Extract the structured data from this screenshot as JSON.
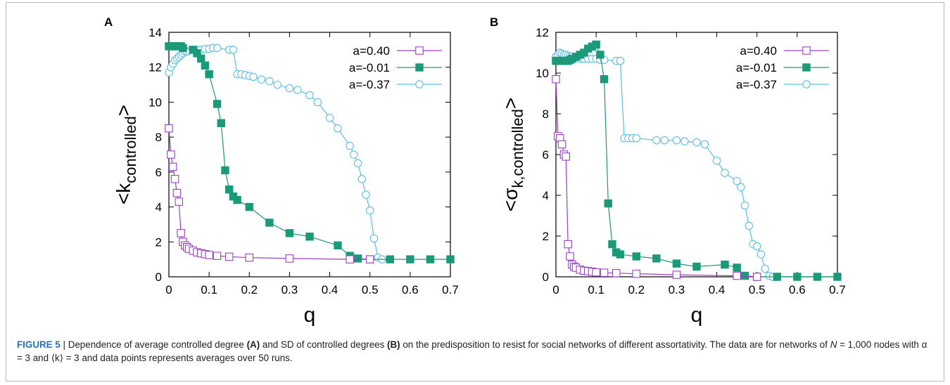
{
  "figure": {
    "caption": {
      "label": "FIGURE 5",
      "separator": " | ",
      "part1": "Dependence of average controlled degree ",
      "ref_a": "(A)",
      "part2": " and SD of controlled degrees ",
      "ref_b": "(B)",
      "part3": " on the predisposition to resist for social networks of different assortativity. The data are for networks of ",
      "n_symbol": "N",
      "part4": " = 1,000 nodes with α = 3 and ⟨k⟩ = 3 and data points represents averages over 50 runs."
    }
  },
  "colors": {
    "a040": "#9b3fc4",
    "a001": "#1a9a78",
    "a037": "#5bbde4"
  },
  "chart_data": [
    {
      "panel": "A",
      "type": "line",
      "xlabel": "q",
      "ylabel_main": "<k",
      "ylabel_sub": "controlled",
      "ylabel_end": ">",
      "xlim": [
        0,
        0.7
      ],
      "ylim": [
        0,
        14
      ],
      "xticks": [
        "0",
        "0.1",
        "0.2",
        "0.3",
        "0.4",
        "0.5",
        "0.6",
        "0.7"
      ],
      "yticks": [
        "0",
        "2",
        "4",
        "6",
        "8",
        "10",
        "12",
        "14"
      ],
      "legend_position": "top-right",
      "series": [
        {
          "name": "a=0.40",
          "marker": "open-square",
          "color_key": "a040",
          "x": [
            0.0,
            0.005,
            0.01,
            0.015,
            0.02,
            0.025,
            0.03,
            0.035,
            0.04,
            0.045,
            0.05,
            0.06,
            0.07,
            0.08,
            0.09,
            0.1,
            0.12,
            0.15,
            0.2,
            0.3,
            0.45,
            0.5
          ],
          "y": [
            8.5,
            7.0,
            6.3,
            5.6,
            4.8,
            4.3,
            2.5,
            2.0,
            1.8,
            1.7,
            1.6,
            1.5,
            1.4,
            1.35,
            1.3,
            1.25,
            1.2,
            1.15,
            1.1,
            1.05,
            1.0,
            1.0
          ]
        },
        {
          "name": "a=-0.01",
          "marker": "filled-square",
          "color_key": "a001",
          "x": [
            0.0,
            0.005,
            0.01,
            0.015,
            0.02,
            0.025,
            0.03,
            0.035,
            0.06,
            0.07,
            0.08,
            0.09,
            0.1,
            0.12,
            0.13,
            0.14,
            0.15,
            0.16,
            0.17,
            0.2,
            0.25,
            0.3,
            0.35,
            0.42,
            0.45,
            0.47,
            0.5,
            0.55,
            0.6,
            0.65,
            0.7
          ],
          "y": [
            13.2,
            13.2,
            13.2,
            13.2,
            13.2,
            13.2,
            13.2,
            13.1,
            13.0,
            12.8,
            12.5,
            12.1,
            11.6,
            9.9,
            8.8,
            6.1,
            5.0,
            4.6,
            4.4,
            4.0,
            3.1,
            2.5,
            2.3,
            1.8,
            1.2,
            1.05,
            1.0,
            1.0,
            1.0,
            1.0,
            1.0
          ]
        },
        {
          "name": "a=-0.37",
          "marker": "open-circle",
          "color_key": "a037",
          "x": [
            0.0,
            0.005,
            0.01,
            0.015,
            0.02,
            0.025,
            0.03,
            0.035,
            0.04,
            0.045,
            0.05,
            0.06,
            0.07,
            0.08,
            0.09,
            0.1,
            0.11,
            0.12,
            0.15,
            0.16,
            0.17,
            0.18,
            0.19,
            0.2,
            0.21,
            0.23,
            0.25,
            0.27,
            0.3,
            0.32,
            0.35,
            0.37,
            0.4,
            0.42,
            0.45,
            0.46,
            0.47,
            0.48,
            0.49,
            0.5,
            0.51,
            0.52,
            0.53
          ],
          "y": [
            11.7,
            12.0,
            12.2,
            12.4,
            12.5,
            12.6,
            12.7,
            12.8,
            12.9,
            12.9,
            12.95,
            13.0,
            13.0,
            13.0,
            13.05,
            13.05,
            13.1,
            13.1,
            13.0,
            13.0,
            11.6,
            11.6,
            11.55,
            11.5,
            11.45,
            11.3,
            11.2,
            11.0,
            10.8,
            10.7,
            10.4,
            10.0,
            9.1,
            8.5,
            7.5,
            7.0,
            6.5,
            5.6,
            4.7,
            3.8,
            2.2,
            1.1,
            1.0
          ]
        }
      ]
    },
    {
      "panel": "B",
      "type": "line",
      "xlabel": "q",
      "ylabel_main": "<σ",
      "ylabel_sub": "k,controlled",
      "ylabel_end": ">",
      "xlim": [
        0,
        0.7
      ],
      "ylim": [
        0,
        12
      ],
      "xticks": [
        "0",
        "0.1",
        "0.2",
        "0.3",
        "0.4",
        "0.5",
        "0.6",
        "0.7"
      ],
      "yticks": [
        "0",
        "2",
        "4",
        "6",
        "8",
        "10",
        "12"
      ],
      "legend_position": "top-right",
      "series": [
        {
          "name": "a=0.40",
          "marker": "open-square",
          "color_key": "a040",
          "x": [
            0.0,
            0.005,
            0.01,
            0.015,
            0.02,
            0.025,
            0.03,
            0.035,
            0.04,
            0.045,
            0.05,
            0.06,
            0.07,
            0.08,
            0.09,
            0.1,
            0.12,
            0.15,
            0.2,
            0.3,
            0.45,
            0.5
          ],
          "y": [
            9.7,
            6.9,
            6.8,
            6.5,
            6.0,
            5.9,
            1.6,
            1.0,
            0.6,
            0.5,
            0.45,
            0.35,
            0.3,
            0.28,
            0.25,
            0.22,
            0.2,
            0.18,
            0.15,
            0.1,
            0.05,
            0.0
          ]
        },
        {
          "name": "a=-0.01",
          "marker": "filled-square",
          "color_key": "a001",
          "x": [
            0.0,
            0.005,
            0.01,
            0.015,
            0.02,
            0.025,
            0.03,
            0.035,
            0.04,
            0.05,
            0.06,
            0.07,
            0.08,
            0.09,
            0.1,
            0.11,
            0.12,
            0.13,
            0.14,
            0.15,
            0.16,
            0.2,
            0.25,
            0.3,
            0.35,
            0.42,
            0.45,
            0.47,
            0.5,
            0.55,
            0.6,
            0.65,
            0.7
          ],
          "y": [
            10.6,
            10.6,
            10.6,
            10.6,
            10.6,
            10.6,
            10.6,
            10.65,
            10.7,
            10.8,
            10.9,
            11.0,
            11.2,
            11.3,
            11.4,
            10.9,
            9.7,
            3.6,
            1.6,
            1.2,
            1.1,
            1.0,
            0.9,
            0.65,
            0.5,
            0.6,
            0.45,
            0.05,
            0.0,
            0.0,
            0.0,
            0.0,
            0.0
          ]
        },
        {
          "name": "a=-0.37",
          "marker": "open-circle",
          "color_key": "a037",
          "x": [
            0.0,
            0.005,
            0.01,
            0.015,
            0.02,
            0.025,
            0.03,
            0.035,
            0.04,
            0.05,
            0.06,
            0.07,
            0.08,
            0.09,
            0.1,
            0.11,
            0.12,
            0.15,
            0.16,
            0.17,
            0.18,
            0.19,
            0.2,
            0.25,
            0.27,
            0.3,
            0.32,
            0.35,
            0.37,
            0.4,
            0.42,
            0.45,
            0.46,
            0.47,
            0.48,
            0.49,
            0.5,
            0.51,
            0.52,
            0.53,
            0.54,
            0.55
          ],
          "y": [
            10.8,
            10.9,
            11.0,
            10.95,
            10.9,
            10.9,
            10.85,
            10.8,
            10.8,
            10.75,
            10.7,
            10.7,
            10.7,
            10.7,
            10.7,
            10.65,
            10.65,
            10.6,
            10.6,
            6.8,
            6.8,
            6.8,
            6.8,
            6.7,
            6.7,
            6.7,
            6.65,
            6.6,
            6.5,
            5.7,
            5.1,
            4.7,
            4.4,
            3.5,
            2.5,
            1.6,
            1.5,
            1.1,
            0.4,
            0.05,
            0.0,
            0.0
          ]
        }
      ]
    }
  ]
}
